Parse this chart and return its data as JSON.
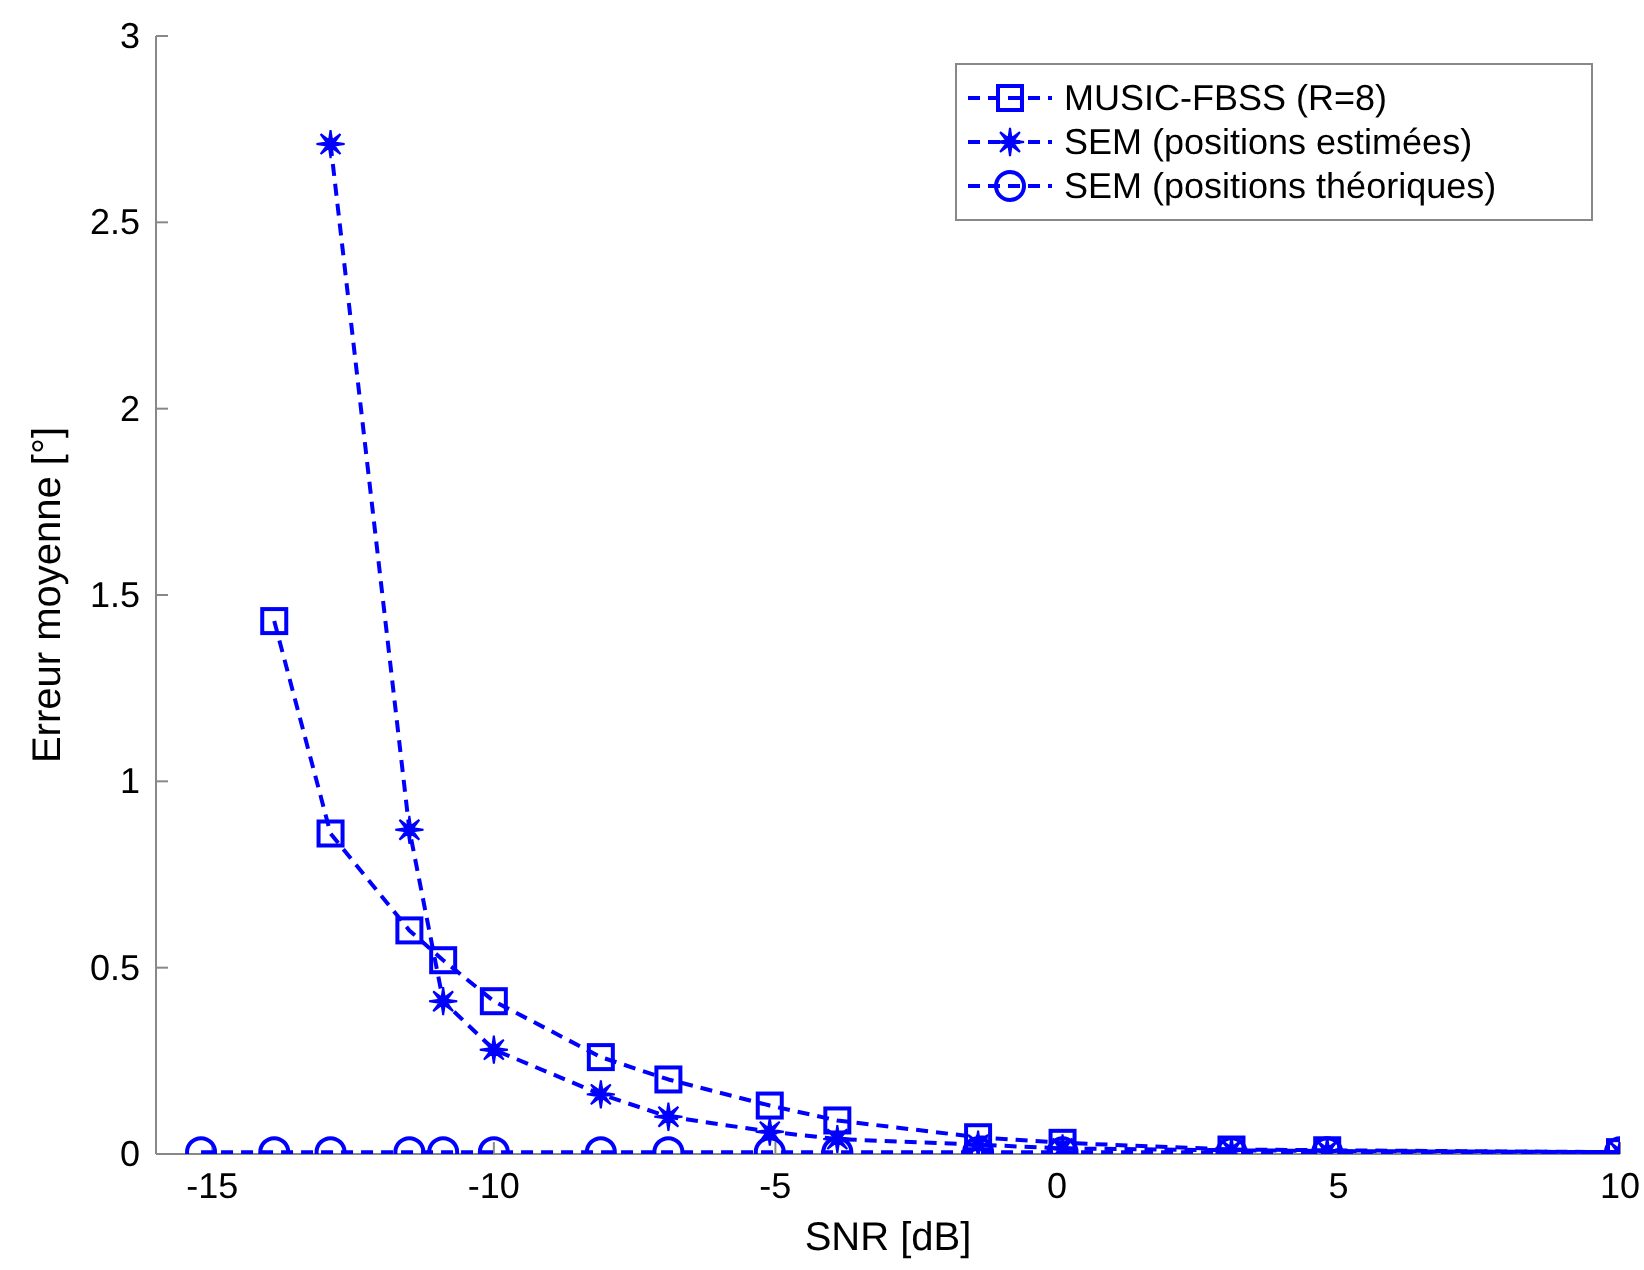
{
  "chart_data": {
    "type": "line",
    "xlabel": "SNR [dB]",
    "ylabel": "Erreur moyenne [°]",
    "x": [
      -15.2,
      -13.9,
      -12.9,
      -11.5,
      -10.9,
      -10,
      -8.1,
      -6.9,
      -5.1,
      -3.9,
      -1.4,
      0.1,
      3.1,
      4.8,
      10
    ],
    "series": [
      {
        "name": "MUSIC-FBSS (R=8)",
        "color": "#0000ff",
        "marker": "square",
        "values": [
          null,
          1.43,
          0.86,
          0.6,
          0.52,
          0.41,
          0.26,
          0.2,
          0.13,
          0.09,
          0.045,
          0.03,
          0.012,
          0.01,
          0.005
        ]
      },
      {
        "name": "SEM (positions estimées)",
        "color": "#0000ff",
        "marker": "star",
        "values": [
          null,
          null,
          2.71,
          0.87,
          0.41,
          0.28,
          0.16,
          0.1,
          0.06,
          0.04,
          0.025,
          0.015,
          0.01,
          0.008,
          0.005
        ]
      },
      {
        "name": "SEM (positions théoriques)",
        "color": "#0000ff",
        "marker": "circle",
        "values": [
          0.005,
          0.005,
          0.005,
          0.005,
          0.005,
          0.005,
          0.005,
          0.005,
          0.005,
          0.005,
          0.005,
          0.005,
          0.005,
          0.005,
          0.005
        ]
      }
    ],
    "xlim": [
      -16,
      10
    ],
    "xticks": [
      -15,
      -10,
      -5,
      0,
      5,
      10
    ],
    "ylim": [
      0,
      3
    ],
    "yticks": [
      0,
      0.5,
      1,
      1.5,
      2,
      2.5,
      3
    ],
    "line_style": "dashed",
    "legend": "top right",
    "grid": false
  }
}
